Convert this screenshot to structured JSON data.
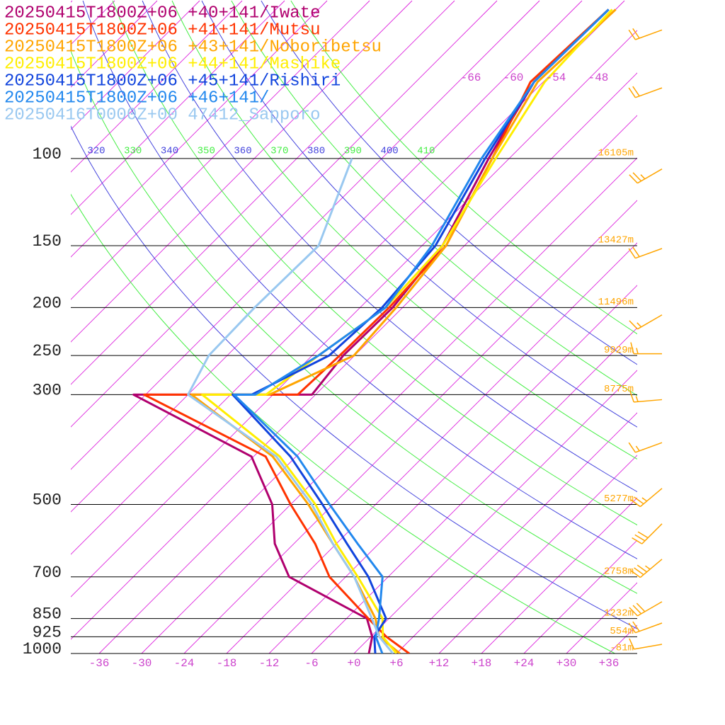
{
  "chart_data": {
    "type": "skewt",
    "pressure": [
      1000,
      925,
      850,
      700,
      600,
      500,
      400,
      300,
      300,
      250,
      200,
      150,
      100,
      70,
      50
    ],
    "series": [
      {
        "name": "20250415T1800Z+06 +40+141/Iwate",
        "color": "#b0006e",
        "values": [
          2.1,
          0.2,
          -3.1,
          -20.0,
          -26.7,
          -32.6,
          -42.3,
          -67.7,
          -42.5,
          -43.6,
          -43.4,
          -45.1,
          -50.9,
          -55.3,
          -55.0
        ]
      },
      {
        "name": "20250415T1800Z+06 +41+141/Mutsu",
        "color": "#ff3300",
        "values": [
          7.8,
          2.2,
          -2.9,
          -14.3,
          -21.0,
          -30.0,
          -40.3,
          -66.2,
          -44.5,
          -44.1,
          -43.9,
          -44.6,
          -50.4,
          -55.8,
          -55.0
        ]
      },
      {
        "name": "20250415T1800Z+06 +43+141/Noboribetsu",
        "color": "#ffa500",
        "values": [
          6.5,
          1.2,
          -1.9,
          -10.8,
          -18.5,
          -27.5,
          -39.3,
          -59.5,
          -48.5,
          -42.1,
          -42.9,
          -44.6,
          -50.4,
          -54.8,
          -54.0
        ]
      },
      {
        "name": "20250415T1800Z+06 +44+141/Mashike",
        "color": "#ffee00",
        "values": [
          6.0,
          1.7,
          -0.9,
          -10.3,
          -18.0,
          -26.5,
          -38.3,
          -58.0,
          -49.0,
          -47.1,
          -44.4,
          -45.1,
          -49.9,
          -53.8,
          -54.5
        ]
      },
      {
        "name": "20250415T1800Z+06 +45+141/Rishiri",
        "color": "#1144dd",
        "values": [
          3.0,
          0.5,
          -0.4,
          -8.8,
          -16.5,
          -25.5,
          -36.8,
          -53.7,
          -51.0,
          -45.6,
          -44.9,
          -46.1,
          -51.4,
          -55.3,
          -55.0
        ]
      },
      {
        "name": "20250415T1800Z+06 +46+141/",
        "color": "#2288ee",
        "values": [
          4.0,
          0.7,
          -1.4,
          -6.8,
          -15.0,
          -24.5,
          -35.8,
          -53.5,
          -50.5,
          -47.1,
          -44.4,
          -46.6,
          -51.9,
          -55.3,
          -55.0
        ]
      },
      {
        "name": "20250416T0000Z+00 47412_Sapporo",
        "color": "#99c8f0",
        "values": [
          5.5,
          1.2,
          -2.4,
          -10.8,
          -18.5,
          -27.0,
          -38.8,
          -60.0,
          -60.0,
          -62.6,
          -62.9,
          -62.6,
          -70.2,
          null,
          null
        ]
      }
    ],
    "ylim": [
      1000,
      48
    ],
    "log_y": true,
    "yticks": [
      100,
      150,
      200,
      250,
      300,
      500,
      700,
      850,
      925,
      1000
    ],
    "heights": [
      {
        "value": 16105,
        "label": "16105m"
      },
      {
        "value": 13427,
        "label": "13427m"
      },
      {
        "value": 11496,
        "label": "11496m"
      },
      {
        "value": 9929,
        "label": "9929m"
      },
      {
        "value": 8775,
        "label": "8775m"
      },
      {
        "value": 5277,
        "label": "5277m"
      },
      {
        "value": 2758,
        "label": "2758m"
      },
      {
        "value": 1232,
        "label": "1232m"
      },
      {
        "value": 554,
        "label": "554m"
      },
      {
        "value": -81,
        "label": "-81m"
      }
    ],
    "xlim": [
      -40,
      40
    ],
    "xticks": [
      -36,
      -30,
      -24,
      -18,
      -12,
      -6,
      {
        "value": 0,
        "label": "+0"
      },
      {
        "value": 6,
        "label": "+6"
      },
      {
        "value": 12,
        "label": "+12"
      },
      {
        "value": 18,
        "label": "+18"
      },
      {
        "value": 24,
        "label": "+24"
      },
      {
        "value": 30,
        "label": "+30"
      },
      {
        "value": 36,
        "label": "+36"
      }
    ],
    "isotherm_labels": [
      -66,
      -60,
      -54,
      -48
    ],
    "isotherm_color": "#dd22dd",
    "theta_lines": [
      {
        "value": 310,
        "color": "#44ee44"
      },
      {
        "value": 320,
        "color": "#4444dd"
      },
      {
        "value": 330,
        "color": "#44ee44"
      },
      {
        "value": 340,
        "color": "#4444dd"
      },
      {
        "value": 350,
        "color": "#44ee44"
      },
      {
        "value": 360,
        "color": "#4444dd"
      },
      {
        "value": 370,
        "color": "#44ee44"
      },
      {
        "value": 380,
        "color": "#4444dd"
      },
      {
        "value": 390,
        "color": "#44ee44"
      },
      {
        "value": 400,
        "color": "#4444dd"
      },
      {
        "value": 410,
        "color": "#44ee44"
      }
    ],
    "wind": {
      "color": "#ffa500",
      "pressure": [
        55,
        72,
        105,
        152,
        207,
        248,
        307,
        375,
        464,
        547,
        645,
        786,
        868,
        958
      ],
      "direction": [
        250,
        250,
        240,
        250,
        240,
        270,
        265,
        250,
        230,
        225,
        230,
        240,
        250,
        260
      ],
      "speed": [
        20,
        20,
        25,
        20,
        15,
        15,
        15,
        15,
        25,
        30,
        35,
        30,
        20,
        10
      ]
    }
  }
}
